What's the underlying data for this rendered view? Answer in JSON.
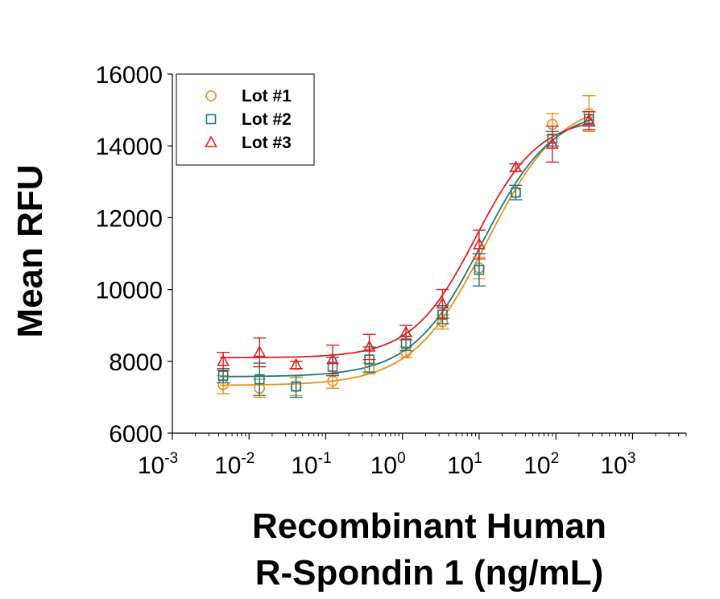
{
  "chart_data": {
    "type": "scatter",
    "xscale": "log",
    "xlim": [
      0.001,
      5000
    ],
    "ylim": [
      6000,
      16000
    ],
    "xlabel_lines": [
      "Recombinant Human",
      "R-Spondin 1 (ng/mL)"
    ],
    "ylabel": "Mean RFU",
    "yticks": [
      "6000",
      "8000",
      "10000",
      "12000",
      "14000",
      "16000"
    ],
    "yticks_values": [
      6000,
      8000,
      10000,
      12000,
      14000,
      16000
    ],
    "xticks": [
      {
        "base": "10",
        "exp": "-3",
        "value": 0.001
      },
      {
        "base": "10",
        "exp": "-2",
        "value": 0.01
      },
      {
        "base": "10",
        "exp": "-1",
        "value": 0.1
      },
      {
        "base": "10",
        "exp": "0",
        "value": 1
      },
      {
        "base": "10",
        "exp": "1",
        "value": 10
      },
      {
        "base": "10",
        "exp": "2",
        "value": 100
      },
      {
        "base": "10",
        "exp": "3",
        "value": 1000
      }
    ],
    "legend_position": "top-left",
    "grid": false,
    "series": [
      {
        "name": "Lot #1",
        "marker": "circle",
        "color": "#E8901A",
        "x": [
          0.0046,
          0.0137,
          0.041,
          0.123,
          0.37,
          1.11,
          3.33,
          10,
          30,
          90,
          270
        ],
        "y": [
          7350,
          7250,
          7300,
          7450,
          7800,
          8250,
          9100,
          10600,
          12700,
          14600,
          14900
        ],
        "err": [
          250,
          250,
          250,
          200,
          150,
          150,
          200,
          300,
          200,
          300,
          500
        ],
        "fit_bottom": 7330,
        "fit_top": 15300,
        "fit_ec50": 12.5,
        "fit_hill": 0.9
      },
      {
        "name": "Lot #2",
        "marker": "square",
        "color": "#1A7A80",
        "x": [
          0.0046,
          0.0137,
          0.041,
          0.123,
          0.37,
          1.11,
          3.33,
          10,
          30,
          90,
          270
        ],
        "y": [
          7600,
          7500,
          7300,
          7850,
          8050,
          8500,
          9300,
          10550,
          12700,
          14200,
          14750
        ],
        "err": [
          200,
          450,
          300,
          250,
          350,
          200,
          250,
          450,
          200,
          200,
          200
        ],
        "fit_bottom": 7570,
        "fit_top": 15050,
        "fit_ec50": 11,
        "fit_hill": 0.95
      },
      {
        "name": "Lot #3",
        "marker": "triangle",
        "color": "#E01F1F",
        "x": [
          0.0046,
          0.0137,
          0.041,
          0.123,
          0.37,
          1.11,
          3.33,
          10,
          30,
          90,
          270
        ],
        "y": [
          8000,
          8250,
          7900,
          8050,
          8400,
          8800,
          9600,
          11250,
          13400,
          14050,
          14700
        ],
        "err": [
          250,
          400,
          100,
          400,
          350,
          200,
          400,
          400,
          100,
          500,
          250
        ],
        "fit_bottom": 8100,
        "fit_top": 14800,
        "fit_ec50": 9,
        "fit_hill": 1.05
      }
    ]
  }
}
